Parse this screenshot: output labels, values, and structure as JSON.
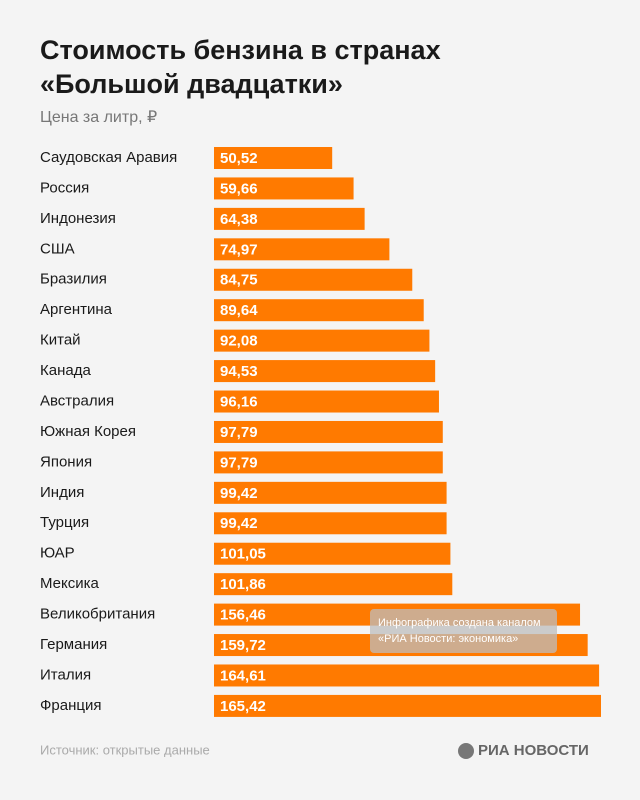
{
  "chart_data": {
    "type": "bar",
    "orientation": "horizontal",
    "title_lines": [
      "Стоимость бензина в странах",
      "«Большой двадцатки»"
    ],
    "subtitle": "Цена за литр, ₽",
    "categories": [
      "Саудовская Аравия",
      "Россия",
      "Индонезия",
      "США",
      "Бразилия",
      "Аргентина",
      "Китай",
      "Канада",
      "Австралия",
      "Южная Корея",
      "Япония",
      "Индия",
      "Турция",
      "ЮАР",
      "Мексика",
      "Великобритания",
      "Германия",
      "Италия",
      "Франция"
    ],
    "values": [
      50.52,
      59.66,
      64.38,
      74.97,
      84.75,
      89.64,
      92.08,
      94.53,
      96.16,
      97.79,
      97.79,
      99.42,
      99.42,
      101.05,
      101.86,
      156.46,
      159.72,
      164.61,
      165.42
    ],
    "value_labels": [
      "50,52",
      "59,66",
      "64,38",
      "74,97",
      "84,75",
      "89,64",
      "92,08",
      "94,53",
      "96,16",
      "97,79",
      "97,79",
      "99,42",
      "99,42",
      "101,05",
      "101,86",
      "156,46",
      "159,72",
      "164,61",
      "165,42"
    ],
    "color": "#ff7a00",
    "source": "Источник: открытые данные",
    "logo": "РИА НОВОСТИ",
    "note_lines": [
      "Инфографика создана каналом",
      "«РИА Новости: экономика»"
    ]
  }
}
